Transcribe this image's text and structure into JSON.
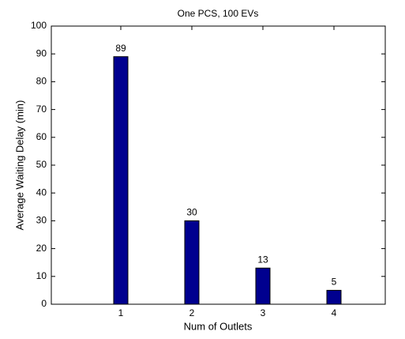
{
  "chart_data": {
    "type": "bar",
    "title": "One PCS, 100 EVs",
    "x_label": "Num of Outlets",
    "y_label": "Average Waiting Delay (min)",
    "categories": [
      "1",
      "2",
      "3",
      "4"
    ],
    "values": [
      89,
      30,
      13,
      5
    ],
    "color": "#00008f",
    "ylim": [
      0,
      100
    ],
    "yticks": [
      0,
      10,
      20,
      30,
      40,
      50,
      60,
      70,
      80,
      90,
      100
    ],
    "grid": false
  }
}
